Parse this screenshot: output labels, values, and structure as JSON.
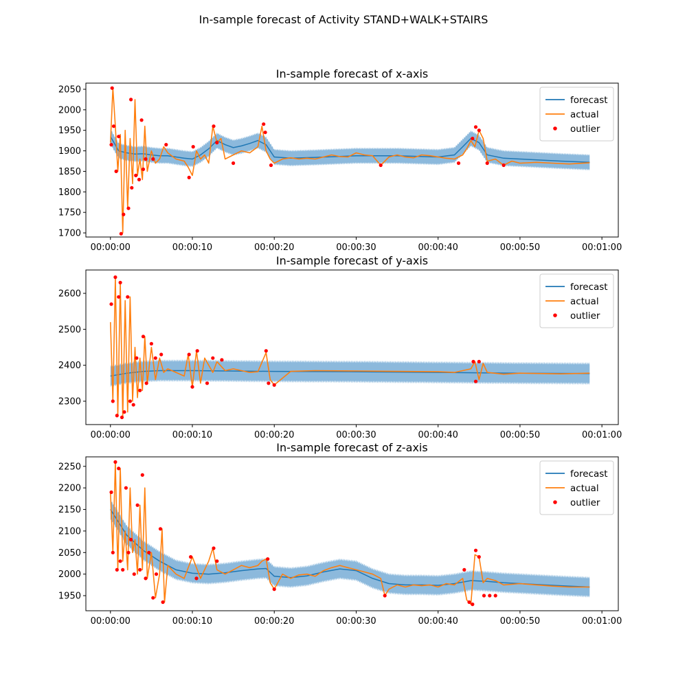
{
  "figure_title": "In-sample forecast of Activity STAND+WALK+STAIRS",
  "colors": {
    "forecast": "#1f77b4",
    "band": "#8cb9dc",
    "actual": "#ff7f0e",
    "outlier": "#ff0000"
  },
  "chart_data": [
    {
      "type": "line",
      "title": "In-sample forecast of x-axis",
      "xlabel": "",
      "ylabel": "",
      "x_ticks": [
        "00:00:00",
        "00:00:10",
        "00:00:20",
        "00:00:30",
        "00:00:40",
        "00:00:50",
        "00:01:00"
      ],
      "xlim_seconds": [
        -3,
        62
      ],
      "ylim": [
        1690,
        2065
      ],
      "y_ticks": [
        1700,
        1750,
        1800,
        1850,
        1900,
        1950,
        2000,
        2050
      ],
      "legend": [
        "forecast",
        "actual",
        "outlier"
      ],
      "legend_position": "top-right",
      "band_halfwidth": 18,
      "series": [
        {
          "name": "forecast",
          "x_seconds": [
            0,
            1,
            2,
            3,
            4,
            5,
            6,
            7,
            8,
            9,
            10,
            11,
            12,
            13,
            14,
            15,
            16,
            17,
            18,
            19,
            20,
            22,
            25,
            30,
            35,
            40,
            42,
            43,
            44,
            45,
            46,
            48,
            50,
            55,
            58.5
          ],
          "values": [
            1935,
            1900,
            1895,
            1892,
            1893,
            1890,
            1888,
            1888,
            1885,
            1882,
            1880,
            1890,
            1905,
            1925,
            1915,
            1908,
            1912,
            1918,
            1925,
            1915,
            1885,
            1882,
            1884,
            1888,
            1888,
            1885,
            1890,
            1910,
            1930,
            1920,
            1890,
            1882,
            1880,
            1875,
            1872
          ]
        },
        {
          "name": "actual",
          "x_seconds": [
            0,
            0.3,
            0.6,
            0.9,
            1.2,
            1.5,
            1.8,
            2.1,
            2.4,
            2.7,
            3,
            3.3,
            3.6,
            3.9,
            4.2,
            4.5,
            5,
            5.5,
            6,
            6.5,
            7,
            8,
            9,
            9.5,
            10,
            10.5,
            11,
            11.5,
            12,
            12.5,
            13,
            13.5,
            14,
            15,
            16,
            17,
            18,
            18.5,
            19,
            19.5,
            20,
            21,
            22,
            23,
            24,
            25,
            26,
            27,
            28,
            29,
            30,
            31,
            32,
            33,
            34,
            35,
            36,
            37,
            38,
            39,
            40,
            41,
            42,
            43,
            43.5,
            44,
            44.5,
            45,
            45.5,
            46,
            47,
            48,
            49,
            50,
            52,
            54,
            56,
            58.5
          ],
          "values": [
            1920,
            2053,
            1960,
            1850,
            1940,
            1700,
            1950,
            1760,
            1930,
            1820,
            2025,
            1840,
            1880,
            1830,
            1960,
            1850,
            1900,
            1870,
            1880,
            1910,
            1895,
            1880,
            1875,
            1860,
            1840,
            1900,
            1880,
            1890,
            1870,
            1960,
            1920,
            1930,
            1880,
            1890,
            1900,
            1895,
            1910,
            1960,
            1900,
            1880,
            1870,
            1880,
            1883,
            1880,
            1882,
            1880,
            1885,
            1890,
            1886,
            1885,
            1895,
            1890,
            1888,
            1865,
            1885,
            1890,
            1885,
            1883,
            1890,
            1888,
            1885,
            1882,
            1880,
            1890,
            1905,
            1925,
            1910,
            1950,
            1930,
            1875,
            1880,
            1865,
            1875,
            1870,
            1872,
            1870,
            1868,
            1871
          ]
        },
        {
          "name": "outlier",
          "x_seconds": [
            0.1,
            0.2,
            0.4,
            0.7,
            1,
            1.3,
            1.6,
            2.2,
            2.5,
            2.6,
            3.1,
            3.5,
            3.8,
            4,
            4.3,
            5.2,
            6.8,
            9.6,
            10.1,
            12.6,
            13,
            15,
            18.7,
            18.9,
            19.6,
            33,
            42.5,
            44.2,
            44.6,
            45,
            46,
            48
          ],
          "values": [
            1915,
            2053,
            1960,
            1850,
            1935,
            1698,
            1745,
            1760,
            2025,
            1810,
            1840,
            1830,
            1975,
            1855,
            1880,
            1880,
            1915,
            1835,
            1910,
            1960,
            1920,
            1870,
            1965,
            1945,
            1865,
            1865,
            1870,
            1930,
            1958,
            1950,
            1870,
            1865
          ]
        }
      ]
    },
    {
      "type": "line",
      "title": "In-sample forecast of y-axis",
      "xlabel": "",
      "ylabel": "",
      "x_ticks": [
        "00:00:00",
        "00:00:10",
        "00:00:20",
        "00:00:30",
        "00:00:40",
        "00:00:50",
        "00:01:00"
      ],
      "xlim_seconds": [
        -3,
        62
      ],
      "ylim": [
        2235,
        2665
      ],
      "y_ticks": [
        2300,
        2400,
        2500,
        2600
      ],
      "legend": [
        "forecast",
        "actual",
        "outlier"
      ],
      "legend_position": "top-right",
      "band_halfwidth": 28,
      "series": [
        {
          "name": "forecast",
          "x_seconds": [
            0,
            2,
            4,
            6,
            10,
            20,
            30,
            40,
            50,
            58.5
          ],
          "values": [
            2370,
            2378,
            2383,
            2385,
            2385,
            2383,
            2382,
            2380,
            2378,
            2377
          ]
        },
        {
          "name": "actual",
          "x_seconds": [
            0,
            0.3,
            0.6,
            0.9,
            1.2,
            1.5,
            1.8,
            2.1,
            2.4,
            2.7,
            3,
            3.3,
            3.6,
            3.9,
            4.2,
            4.5,
            5,
            5.5,
            6,
            6.5,
            7,
            8,
            9,
            9.5,
            10,
            10.5,
            11,
            11.5,
            12,
            12.5,
            13,
            14,
            15,
            16,
            17,
            18,
            19,
            19.5,
            20,
            22,
            25,
            30,
            35,
            40,
            42,
            44,
            44.5,
            45,
            45.5,
            46,
            48,
            50,
            55,
            58.5
          ],
          "values": [
            2520,
            2300,
            2645,
            2260,
            2630,
            2255,
            2580,
            2270,
            2590,
            2300,
            2450,
            2310,
            2420,
            2330,
            2480,
            2350,
            2450,
            2360,
            2420,
            2380,
            2390,
            2380,
            2370,
            2430,
            2340,
            2440,
            2350,
            2420,
            2400,
            2380,
            2410,
            2385,
            2390,
            2385,
            2380,
            2382,
            2435,
            2360,
            2345,
            2383,
            2385,
            2384,
            2383,
            2382,
            2380,
            2390,
            2410,
            2360,
            2405,
            2380,
            2375,
            2378,
            2376,
            2378
          ]
        },
        {
          "name": "outlier",
          "x_seconds": [
            0.1,
            0.3,
            0.6,
            0.8,
            1,
            1.2,
            1.4,
            1.7,
            2.1,
            2.4,
            2.8,
            3.2,
            3.6,
            4,
            4.4,
            5,
            5.5,
            6.2,
            9.6,
            10,
            10.6,
            11.8,
            12.5,
            13.6,
            19,
            19.3,
            20,
            44.3,
            44.6,
            45
          ],
          "values": [
            2570,
            2300,
            2645,
            2260,
            2590,
            2630,
            2255,
            2270,
            2590,
            2300,
            2290,
            2420,
            2330,
            2480,
            2350,
            2460,
            2420,
            2430,
            2430,
            2340,
            2440,
            2350,
            2420,
            2415,
            2440,
            2350,
            2345,
            2410,
            2355,
            2410
          ]
        }
      ]
    },
    {
      "type": "line",
      "title": "In-sample forecast of z-axis",
      "xlabel": "",
      "ylabel": "",
      "x_ticks": [
        "00:00:00",
        "00:00:10",
        "00:00:20",
        "00:00:30",
        "00:00:40",
        "00:00:50",
        "00:01:00"
      ],
      "xlim_seconds": [
        -3,
        62
      ],
      "ylim": [
        1915,
        2272
      ],
      "y_ticks": [
        1950,
        2000,
        2050,
        2100,
        2150,
        2200,
        2250
      ],
      "legend": [
        "forecast",
        "actual",
        "outlier"
      ],
      "legend_position": "top-right",
      "band_halfwidth": 22,
      "series": [
        {
          "name": "forecast",
          "x_seconds": [
            0,
            2,
            4,
            6,
            8,
            10,
            12,
            14,
            16,
            18,
            19,
            20,
            22,
            24,
            26,
            28,
            30,
            32,
            34,
            36,
            38,
            40,
            42,
            44,
            46,
            48,
            50,
            55,
            58.5
          ],
          "values": [
            2150,
            2090,
            2055,
            2030,
            2010,
            2002,
            2000,
            2003,
            2008,
            2012,
            2013,
            1995,
            1992,
            1996,
            2005,
            2012,
            2008,
            1990,
            1978,
            1975,
            1975,
            1974,
            1978,
            1985,
            1983,
            1980,
            1978,
            1973,
            1970
          ]
        },
        {
          "name": "actual",
          "x_seconds": [
            0,
            0.3,
            0.6,
            0.9,
            1.2,
            1.5,
            1.8,
            2.1,
            2.4,
            2.7,
            3,
            3.3,
            3.6,
            3.9,
            4.2,
            4.5,
            5,
            5.5,
            6,
            6.3,
            6.6,
            7,
            8,
            9,
            10,
            11,
            12,
            12.5,
            13,
            14,
            15,
            16,
            17,
            18,
            18.5,
            19,
            19.5,
            20,
            21,
            22,
            23,
            24,
            25,
            26,
            27,
            28,
            29,
            30,
            31,
            32,
            33,
            33.5,
            34,
            35,
            36,
            37,
            38,
            39,
            40,
            41,
            42,
            43,
            43.5,
            44,
            44.5,
            45,
            45.5,
            46,
            47,
            48,
            50,
            52,
            54,
            56,
            58.5
          ],
          "values": [
            2190,
            2050,
            2260,
            2010,
            2245,
            2030,
            2100,
            2010,
            2200,
            2050,
            2080,
            2000,
            2160,
            2010,
            2200,
            1990,
            2050,
            1945,
            2000,
            2105,
            1935,
            2020,
            2000,
            1990,
            2040,
            1990,
            2030,
            2060,
            2010,
            2000,
            2010,
            2020,
            2015,
            2020,
            2030,
            2035,
            1980,
            1965,
            2000,
            1990,
            1998,
            2000,
            1995,
            2008,
            2015,
            2020,
            2015,
            2010,
            2005,
            2000,
            1990,
            1950,
            1965,
            1975,
            1970,
            1975,
            1973,
            1975,
            1970,
            1978,
            1975,
            1990,
            1940,
            1930,
            2045,
            2040,
            1980,
            1990,
            1985,
            1975,
            1978,
            1975,
            1972,
            1970,
            1970
          ]
        },
        {
          "name": "outlier",
          "x_seconds": [
            0.1,
            0.3,
            0.6,
            0.8,
            1,
            1.2,
            1.5,
            1.9,
            2.2,
            2.5,
            2.9,
            3.3,
            3.6,
            3.9,
            4.3,
            4.7,
            5.2,
            5.6,
            6.1,
            6.4,
            9.8,
            10.5,
            12.6,
            13,
            19.2,
            20,
            33.5,
            43.2,
            43.8,
            44.2,
            44.6,
            45,
            45.6,
            46.3,
            47
          ],
          "values": [
            2190,
            2050,
            2260,
            2010,
            2245,
            2030,
            2010,
            2200,
            2050,
            2080,
            2000,
            2160,
            2010,
            2230,
            1990,
            2050,
            1945,
            2000,
            2105,
            1935,
            2040,
            1990,
            2060,
            2030,
            2035,
            1965,
            1950,
            2010,
            1935,
            1930,
            2055,
            2040,
            1950,
            1950,
            1950
          ]
        }
      ]
    }
  ]
}
